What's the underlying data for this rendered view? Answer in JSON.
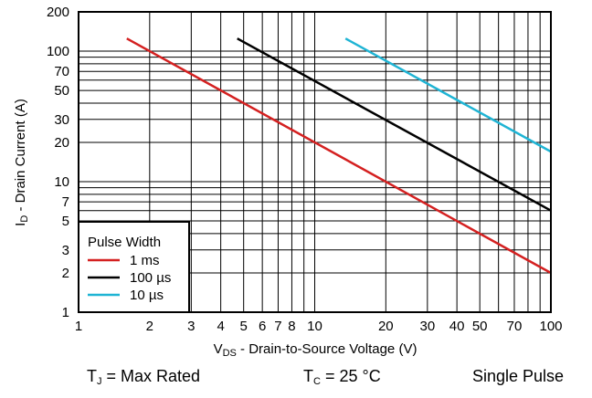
{
  "chart_data": {
    "type": "line",
    "xscale": "log",
    "yscale": "log",
    "xlim": [
      1,
      100
    ],
    "ylim": [
      1,
      200
    ],
    "grid": true,
    "xlabel_main": "V",
    "xlabel_sub": "DS",
    "xlabel_rest": " - Drain-to-Source Voltage (V)",
    "ylabel_main": "I",
    "ylabel_sub": "D",
    "ylabel_rest": " - Drain Current (A)",
    "xticks": [
      1,
      2,
      3,
      4,
      5,
      6,
      7,
      8,
      10,
      20,
      30,
      40,
      50,
      70,
      100
    ],
    "xtick_labels": [
      "1",
      "2",
      "3",
      "4",
      "5",
      "6",
      "7",
      "8",
      "10",
      "20",
      "30",
      "40",
      "50",
      "70",
      "100"
    ],
    "yticks": [
      1,
      2,
      3,
      5,
      7,
      10,
      20,
      30,
      50,
      70,
      100,
      200
    ],
    "ytick_labels": [
      "1",
      "2",
      "3",
      "5",
      "7",
      "10",
      "20",
      "30",
      "50",
      "70",
      "100",
      "200"
    ],
    "legend_title": "Pulse Width",
    "legend_position": "bottom-left",
    "series": [
      {
        "name": "1 ms",
        "color": "#d42020",
        "x": [
          1.6,
          100
        ],
        "y": [
          125,
          2
        ]
      },
      {
        "name": "100 µs",
        "color": "#000000",
        "x": [
          4.7,
          100
        ],
        "y": [
          125,
          6
        ]
      },
      {
        "name": "10 µs",
        "color": "#1fb4d4",
        "x": [
          13.5,
          100
        ],
        "y": [
          125,
          17
        ]
      }
    ]
  },
  "footer": {
    "tj_main": "T",
    "tj_sub": "J",
    "tj_rest": " = Max Rated",
    "tc_main": "T",
    "tc_sub": "C",
    "tc_rest": " = 25 °C",
    "pulse": "Single Pulse"
  }
}
